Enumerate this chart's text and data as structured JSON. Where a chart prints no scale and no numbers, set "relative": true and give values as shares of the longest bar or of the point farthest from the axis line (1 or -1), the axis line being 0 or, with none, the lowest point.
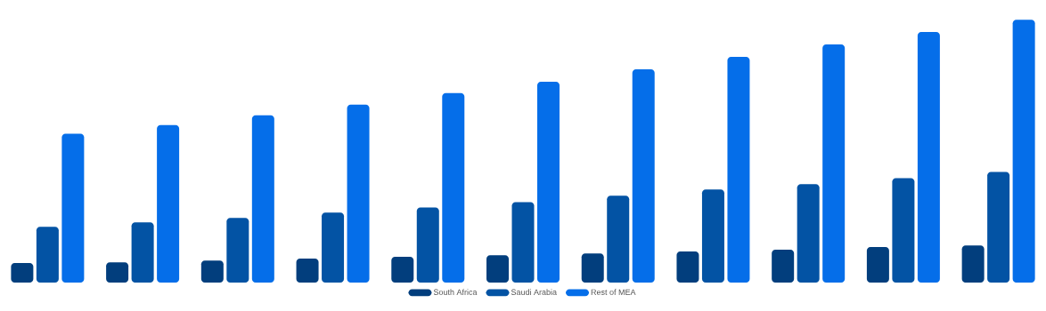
{
  "chart_data": {
    "type": "bar",
    "relative": true,
    "legend": "bottom",
    "categories": [
      null,
      null,
      null,
      null,
      null,
      null,
      null,
      null,
      null,
      null,
      null
    ],
    "series": [
      {
        "name": "South Africa",
        "color": "#023e7d",
        "values": [
          0.074,
          0.077,
          0.084,
          0.091,
          0.098,
          0.104,
          0.111,
          0.118,
          0.125,
          0.135,
          0.141
        ]
      },
      {
        "name": "Saudi Arabia",
        "color": "#0353a4",
        "values": [
          0.212,
          0.229,
          0.246,
          0.266,
          0.286,
          0.306,
          0.33,
          0.354,
          0.374,
          0.397,
          0.421
        ]
      },
      {
        "name": "Rest of MEA",
        "color": "#056ee9",
        "values": [
          0.566,
          0.599,
          0.636,
          0.677,
          0.721,
          0.764,
          0.811,
          0.859,
          0.906,
          0.953,
          1
        ]
      }
    ]
  }
}
